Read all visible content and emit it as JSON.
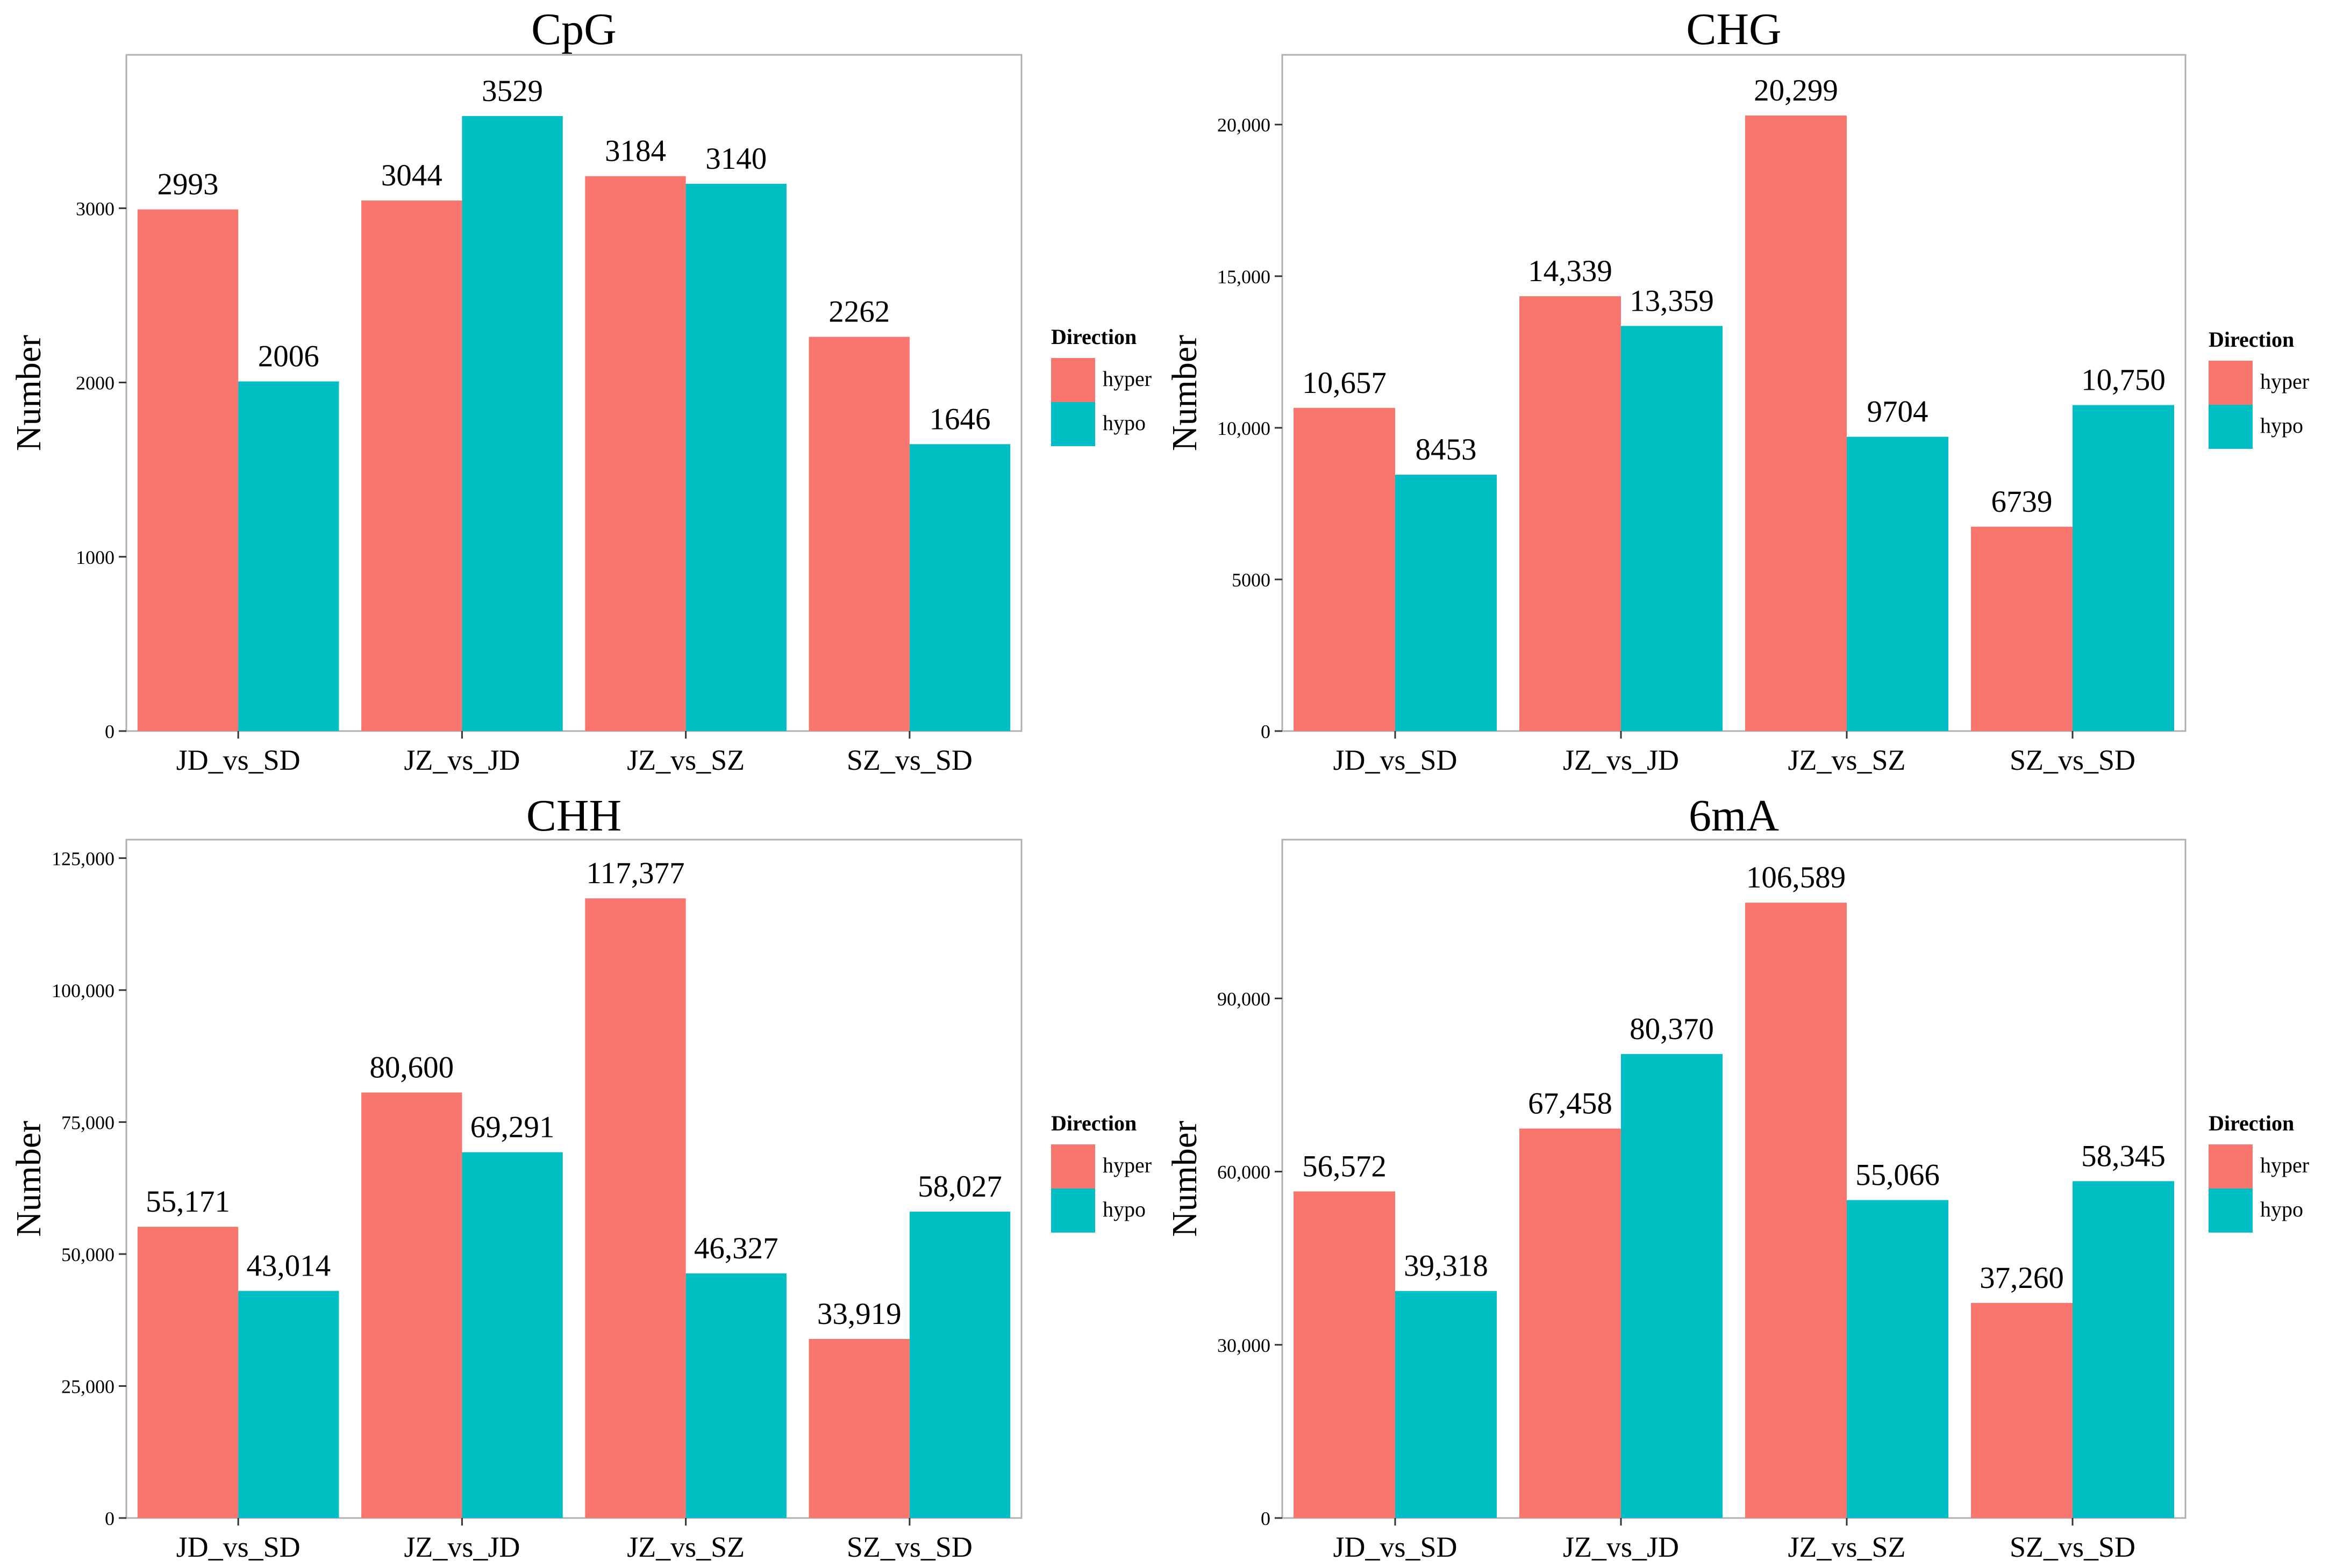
{
  "colors": {
    "hyper": "#F8766D",
    "hypo": "#00BFC4"
  },
  "chart_data": [
    {
      "type": "bar",
      "title": "CpG",
      "xlabel": "",
      "ylabel": "Number",
      "categories": [
        "JD_vs_SD",
        "JZ_vs_JD",
        "JZ_vs_SZ",
        "SZ_vs_SD"
      ],
      "series": [
        {
          "name": "hyper",
          "values": [
            2993,
            3044,
            3184,
            2262
          ]
        },
        {
          "name": "hypo",
          "values": [
            2006,
            3529,
            3140,
            1646
          ]
        }
      ],
      "data_labels": [
        [
          "2993",
          "3044",
          "3184",
          "2262"
        ],
        [
          "2006",
          "3529",
          "3140",
          "1646"
        ]
      ],
      "yticks": [
        0,
        1000,
        2000,
        3000
      ],
      "ytick_labels": [
        "0",
        "1000",
        "2000",
        "3000"
      ],
      "ylim": [
        0,
        3880
      ],
      "legend_title": "Direction",
      "legend_position": "right",
      "grid": false
    },
    {
      "type": "bar",
      "title": "CHG",
      "xlabel": "",
      "ylabel": "Number",
      "categories": [
        "JD_vs_SD",
        "JZ_vs_JD",
        "JZ_vs_SZ",
        "SZ_vs_SD"
      ],
      "series": [
        {
          "name": "hyper",
          "values": [
            10657,
            14339,
            20299,
            6739
          ]
        },
        {
          "name": "hypo",
          "values": [
            8453,
            13359,
            9704,
            10750
          ]
        }
      ],
      "data_labels": [
        [
          "10,657",
          "14,339",
          "20,299",
          "6739"
        ],
        [
          "8453",
          "13,359",
          "9704",
          "10,750"
        ]
      ],
      "yticks": [
        0,
        5000,
        10000,
        15000,
        20000
      ],
      "ytick_labels": [
        "0",
        "5000",
        "10,000",
        "15,000",
        "20,000"
      ],
      "ylim": [
        0,
        22300
      ],
      "legend_title": "Direction",
      "legend_position": "right",
      "grid": false
    },
    {
      "type": "bar",
      "title": "CHH",
      "xlabel": "",
      "ylabel": "Number",
      "categories": [
        "JD_vs_SD",
        "JZ_vs_JD",
        "JZ_vs_SZ",
        "SZ_vs_SD"
      ],
      "series": [
        {
          "name": "hyper",
          "values": [
            55171,
            80600,
            117377,
            33919
          ]
        },
        {
          "name": "hypo",
          "values": [
            43014,
            69291,
            46327,
            58027
          ]
        }
      ],
      "data_labels": [
        [
          "55,171",
          "80,600",
          "117,377",
          "33,919"
        ],
        [
          "43,014",
          "69,291",
          "46,327",
          "58,027"
        ]
      ],
      "yticks": [
        0,
        25000,
        50000,
        75000,
        100000,
        125000
      ],
      "ytick_labels": [
        "0",
        "25,000",
        "50,000",
        "75,000",
        "100,000",
        "125,000"
      ],
      "ylim": [
        0,
        128500
      ],
      "legend_title": "Direction",
      "legend_position": "right",
      "grid": false
    },
    {
      "type": "bar",
      "title": "6mA",
      "xlabel": "",
      "ylabel": "Number",
      "categories": [
        "JD_vs_SD",
        "JZ_vs_JD",
        "JZ_vs_SZ",
        "SZ_vs_SD"
      ],
      "series": [
        {
          "name": "hyper",
          "values": [
            56572,
            67458,
            106589,
            37260
          ]
        },
        {
          "name": "hypo",
          "values": [
            39318,
            80370,
            55066,
            58345
          ]
        }
      ],
      "data_labels": [
        [
          "56,572",
          "67,458",
          "106,589",
          "37,260"
        ],
        [
          "39,318",
          "80,370",
          "55,066",
          "58,345"
        ]
      ],
      "yticks": [
        0,
        30000,
        60000,
        90000
      ],
      "ytick_labels": [
        "0",
        "30,000",
        "60,000",
        "90,000"
      ],
      "ylim": [
        0,
        117500
      ],
      "legend_title": "Direction",
      "legend_position": "right",
      "grid": false
    }
  ]
}
